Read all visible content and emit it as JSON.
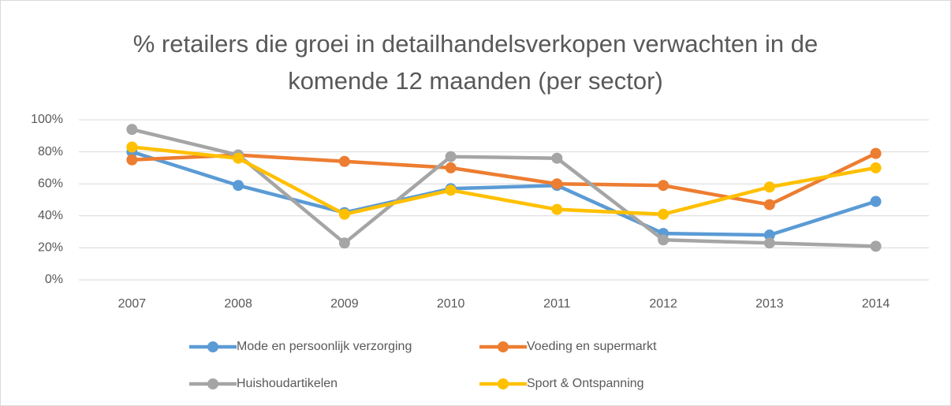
{
  "chart_data": {
    "type": "line",
    "title": "% retailers die groei in detailhandelsverkopen verwachten in de komende 12 maanden (per sector)",
    "categories": [
      "2007",
      "2008",
      "2009",
      "2010",
      "2011",
      "2012",
      "2013",
      "2014"
    ],
    "series": [
      {
        "name": "Mode en persoonlijk verzorging",
        "color": "#5b9bd5",
        "values": [
          80,
          59,
          42,
          57,
          59,
          29,
          28,
          49
        ]
      },
      {
        "name": "Voeding en supermarkt",
        "color": "#ed7d31",
        "values": [
          75,
          78,
          74,
          70,
          60,
          59,
          47,
          79
        ]
      },
      {
        "name": "Huishoudartikelen",
        "color": "#a5a5a5",
        "values": [
          94,
          78,
          23,
          77,
          76,
          25,
          23,
          21
        ]
      },
      {
        "name": "Sport & Ontspanning",
        "color": "#ffc000",
        "values": [
          83,
          76,
          41,
          56,
          44,
          41,
          58,
          70
        ]
      }
    ],
    "ylim": [
      0,
      100
    ],
    "yticks": [
      {
        "value": 0,
        "label": "0%"
      },
      {
        "value": 20,
        "label": "20%"
      },
      {
        "value": 40,
        "label": "40%"
      },
      {
        "value": 60,
        "label": "60%"
      },
      {
        "value": 80,
        "label": "80%"
      },
      {
        "value": 100,
        "label": "100%"
      }
    ],
    "grid": true,
    "legend": "bottom"
  }
}
